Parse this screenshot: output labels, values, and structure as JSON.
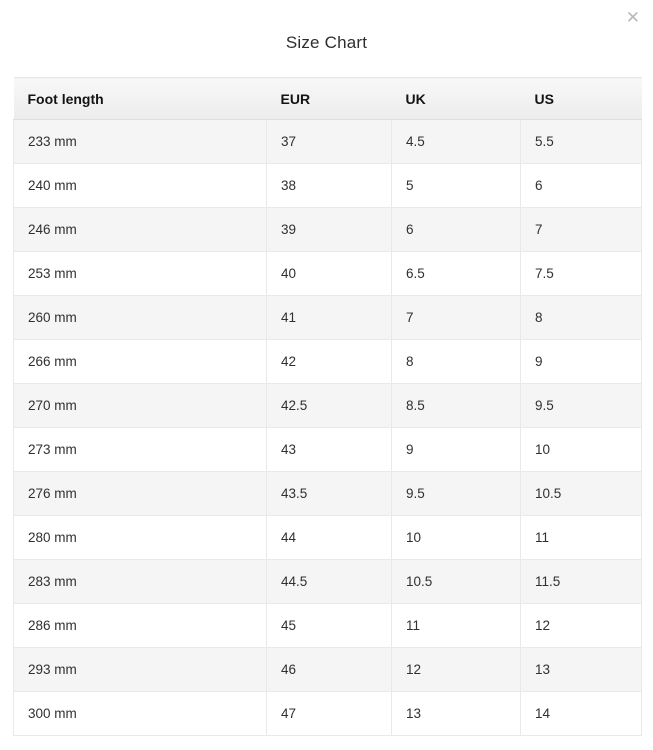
{
  "modal": {
    "title": "Size Chart",
    "close_label": "✕"
  },
  "table": {
    "columns": [
      "Foot length",
      "EUR",
      "UK",
      "US"
    ],
    "rows": [
      [
        "233 mm",
        "37",
        "4.5",
        "5.5"
      ],
      [
        "240 mm",
        "38",
        "5",
        "6"
      ],
      [
        "246 mm",
        "39",
        "6",
        "7"
      ],
      [
        "253 mm",
        "40",
        "6.5",
        "7.5"
      ],
      [
        "260 mm",
        "41",
        "7",
        "8"
      ],
      [
        "266 mm",
        "42",
        "8",
        "9"
      ],
      [
        "270 mm",
        "42.5",
        "8.5",
        "9.5"
      ],
      [
        "273 mm",
        "43",
        "9",
        "10"
      ],
      [
        "276 mm",
        "43.5",
        "9.5",
        "10.5"
      ],
      [
        "280 mm",
        "44",
        "10",
        "11"
      ],
      [
        "283 mm",
        "44.5",
        "10.5",
        "11.5"
      ],
      [
        "286 mm",
        "45",
        "11",
        "12"
      ],
      [
        "293 mm",
        "46",
        "12",
        "13"
      ],
      [
        "300 mm",
        "47",
        "13",
        "14"
      ]
    ]
  },
  "colors": {
    "header_bg_top": "#f8f8f8",
    "header_bg_bottom": "#ececec",
    "stripe_row_bg": "#f5f5f5",
    "cell_border": "#e9e9e9",
    "title_text": "#2e2e2e",
    "close_icon": "#b9b9b9"
  }
}
